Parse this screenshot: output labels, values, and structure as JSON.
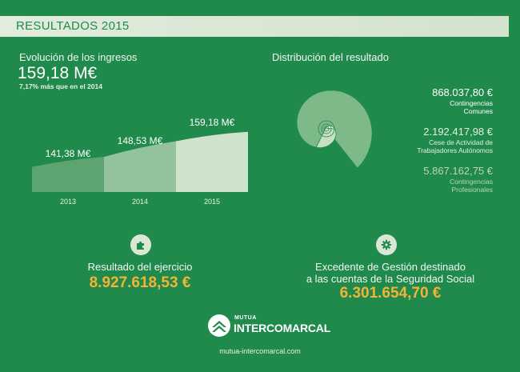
{
  "header": {
    "title": "RESULTADOS 2015"
  },
  "income": {
    "title": "Evolución de los ingresos",
    "total": "159,18 M€",
    "growth": "7,17% más que en el 2014"
  },
  "chart_data": [
    {
      "type": "area",
      "categories": [
        "2013",
        "2014",
        "2015"
      ],
      "values": [
        141.38,
        148.53,
        159.18
      ],
      "value_labels": [
        "141,38  M€",
        "148,53 M€",
        "159,18 M€"
      ],
      "unit": "M€",
      "title": "Evolución de los ingresos",
      "segment_colors": [
        "#5da472",
        "#92c39c",
        "#cfe3cc"
      ]
    },
    {
      "type": "pie",
      "style": "spiral",
      "title": "Distribución del resultado",
      "labels": [
        "Contingencias Comunes",
        "Cese de Actividad de Trabajadores Autónomos",
        "Contingencias Profesionales"
      ],
      "values": [
        868037.8,
        2192417.98,
        5867162.75
      ],
      "value_labels": [
        "868.037,80 €",
        "2.192.417,98 €",
        "5.867.162,75 €"
      ]
    }
  ],
  "distribution": {
    "items": [
      {
        "value": "868.037,80 €",
        "label_lines": [
          "Contingencias",
          "Comunes"
        ]
      },
      {
        "value": "2.192.417,98 €",
        "label_lines": [
          "Cese de Actividad de",
          "Trabajadores Autónomos"
        ]
      },
      {
        "value": "5.867.162,75 €",
        "label_lines": [
          "Contingencias",
          "Profesionales"
        ]
      }
    ]
  },
  "results": {
    "left": {
      "icon": "puzzle-icon",
      "label": "Resultado del ejercicio",
      "value": "8.927.618,53 €"
    },
    "right": {
      "icon": "gear-icon",
      "label_lines": [
        "Excedente de Gestión destinado",
        "a las cuentas de la Seguridad Social"
      ],
      "value": "6.301.654,70 €"
    }
  },
  "brand": {
    "top": "MUTUA",
    "name": "INTERCOMARCAL",
    "url": "mutua-intercomarcal.com"
  },
  "colors": {
    "background": "#1f8a4c",
    "accent_value": "#f5b335",
    "header_band": "#e2ecdd"
  }
}
